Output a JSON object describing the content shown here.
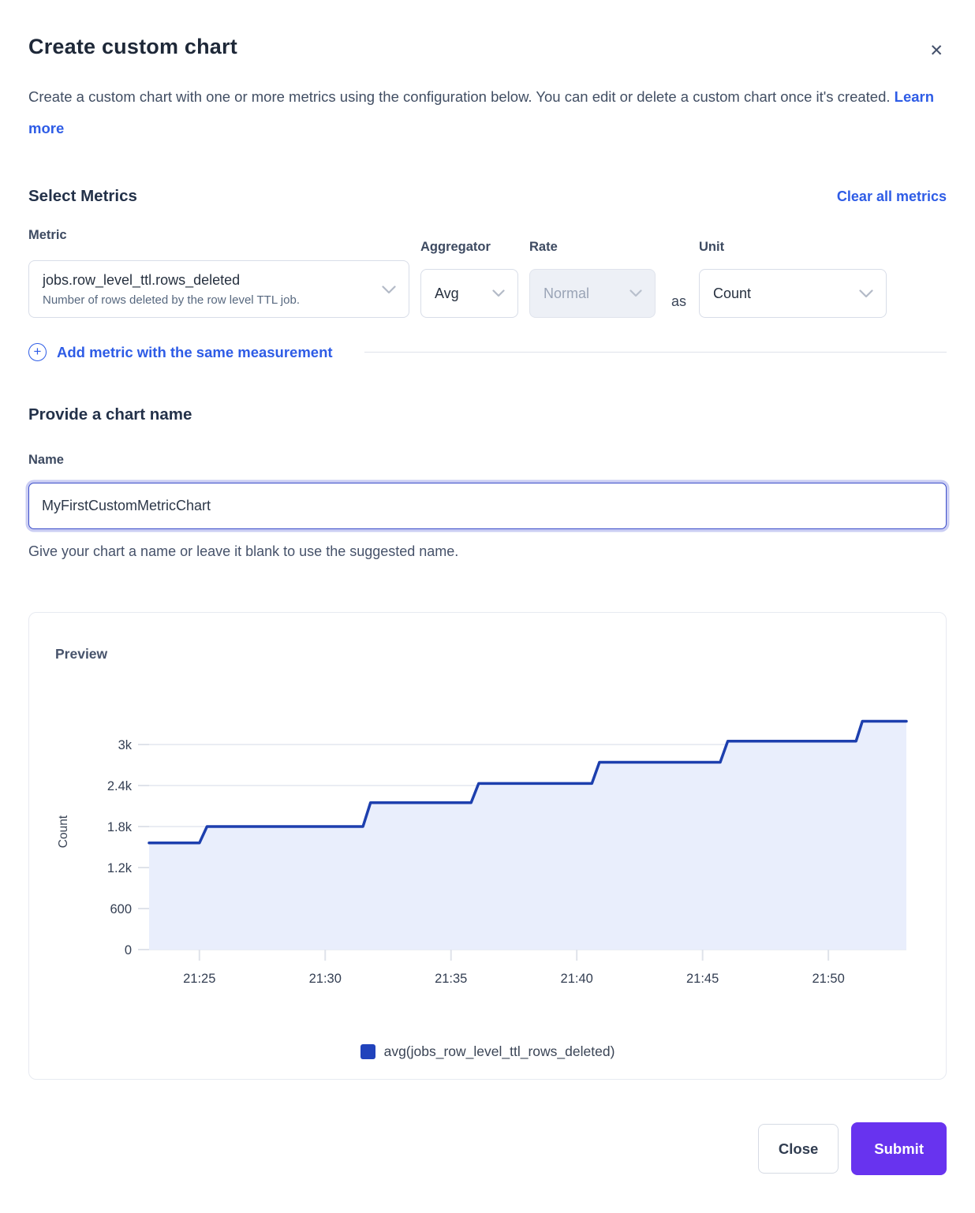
{
  "modal": {
    "title": "Create custom chart",
    "description": "Create a custom chart with one or more metrics using the configuration below. You can edit or delete a custom chart once it's created.",
    "learn_more_label": "Learn more"
  },
  "icons": {
    "close": "✕",
    "add_plus": "+",
    "chevron_down": "⌄"
  },
  "metrics_section": {
    "heading": "Select Metrics",
    "clear_all_label": "Clear all metrics",
    "metric": {
      "label": "Metric",
      "value": "jobs.row_level_ttl.rows_deleted",
      "description": "Number of rows deleted by the row level TTL job."
    },
    "aggregator": {
      "label": "Aggregator",
      "value": "Avg"
    },
    "rate": {
      "label": "Rate",
      "value": "Normal",
      "disabled": true
    },
    "as_label": "as",
    "unit": {
      "label": "Unit",
      "value": "Count"
    },
    "add_metric_label": "Add metric with the same measurement"
  },
  "name_section": {
    "heading": "Provide a chart name",
    "label": "Name",
    "value": "MyFirstCustomMetricChart",
    "helper": "Give your chart a name or leave it blank to use the suggested name."
  },
  "preview": {
    "heading": "Preview",
    "legend": [
      {
        "label": "avg(jobs_row_level_ttl_rows_deleted)",
        "color": "#2143bc"
      }
    ]
  },
  "footer": {
    "close_label": "Close",
    "submit_label": "Submit"
  },
  "colors": {
    "link_blue": "#2e5ce6",
    "line_blue": "#1d3fae",
    "fill_blue": "#e9eefc",
    "gridline": "#e4e7ef",
    "axis_text": "#333e52",
    "submit_purple": "#6833ef"
  },
  "chart_data": {
    "type": "area",
    "step": true,
    "title": "Preview",
    "xlabel": "",
    "ylabel": "Count",
    "x_unit": "minutes since 21:00",
    "x_range": [
      23.0,
      53.1
    ],
    "y_range": [
      0,
      3450
    ],
    "grid": true,
    "legend_position": "bottom",
    "x_ticks": [
      {
        "v": 25,
        "label": "21:25"
      },
      {
        "v": 30,
        "label": "21:30"
      },
      {
        "v": 35,
        "label": "21:35"
      },
      {
        "v": 40,
        "label": "21:40"
      },
      {
        "v": 45,
        "label": "21:45"
      },
      {
        "v": 50,
        "label": "21:50"
      }
    ],
    "y_ticks": [
      {
        "v": 0,
        "label": "0"
      },
      {
        "v": 600,
        "label": "600"
      },
      {
        "v": 1200,
        "label": "1.2k"
      },
      {
        "v": 1800,
        "label": "1.8k"
      },
      {
        "v": 2400,
        "label": "2.4k"
      },
      {
        "v": 3000,
        "label": "3k"
      }
    ],
    "series": [
      {
        "name": "avg(jobs_row_level_ttl_rows_deleted)",
        "color": "#1d3fae",
        "fill": "#e9eefc",
        "points": [
          [
            23.0,
            1560
          ],
          [
            25.0,
            1560
          ],
          [
            25.3,
            1800
          ],
          [
            31.5,
            1800
          ],
          [
            31.8,
            2150
          ],
          [
            35.8,
            2150
          ],
          [
            36.1,
            2430
          ],
          [
            40.6,
            2430
          ],
          [
            40.9,
            2740
          ],
          [
            45.7,
            2740
          ],
          [
            46.0,
            3050
          ],
          [
            51.1,
            3050
          ],
          [
            51.35,
            3340
          ],
          [
            53.1,
            3340
          ]
        ]
      }
    ]
  }
}
